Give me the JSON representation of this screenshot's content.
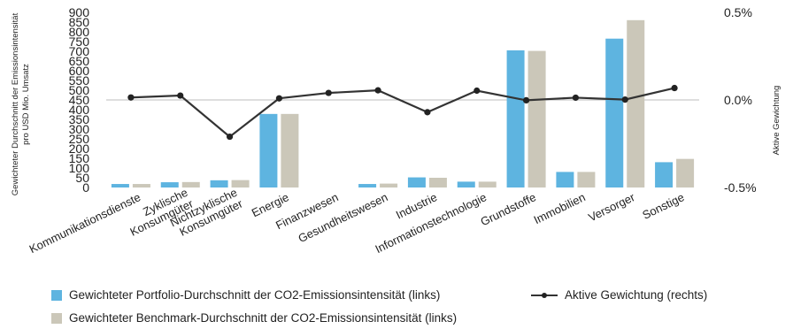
{
  "chart_data": {
    "type": "bar",
    "categories": [
      "Kommunikationsdienste",
      "Zyklische Konsumgüter",
      "Nichtzyklische Konsumgüter",
      "Energie",
      "Finanzwesen",
      "Gesundheitswesen",
      "Industrie",
      "Informationstechnologie",
      "Grundstoffe",
      "Immobilien",
      "Versorger",
      "Sonstige"
    ],
    "category_lines": [
      [
        "Kommunikationsdienste"
      ],
      [
        "Zyklische",
        "Konsumgüter"
      ],
      [
        "Nichtzyklische",
        "Konsumgüter"
      ],
      [
        "Energie"
      ],
      [
        "Finanzwesen"
      ],
      [
        "Gesundheitswesen"
      ],
      [
        "Industrie"
      ],
      [
        "Informationstechnologie"
      ],
      [
        "Grundstoffe"
      ],
      [
        "Immobilien"
      ],
      [
        "Versorger"
      ],
      [
        "Sonstige"
      ]
    ],
    "series": [
      {
        "name": "Gewichteter Portfolio-Durchschnitt der CO2-Emissionsintensität (links)",
        "axis": "left",
        "kind": "bar",
        "color": "#5eb4e0",
        "values": [
          18,
          27,
          37,
          378,
          0,
          18,
          52,
          30,
          705,
          80,
          765,
          130
        ]
      },
      {
        "name": "Gewichteter Benchmark-Durchschnitt der CO2-Emissionsintensität (links)",
        "axis": "left",
        "kind": "bar",
        "color": "#cbc7b9",
        "values": [
          18,
          28,
          38,
          378,
          0,
          20,
          50,
          30,
          702,
          80,
          860,
          147
        ]
      },
      {
        "name": "Aktive Gewichtung (rechts)",
        "axis": "right",
        "kind": "line",
        "color": "#333333",
        "values": [
          0.014,
          0.025,
          -0.21,
          0.009,
          0.04,
          0.055,
          -0.07,
          0.053,
          -0.002,
          0.013,
          0.002,
          0.068
        ]
      }
    ],
    "ylim_left": [
      0,
      900
    ],
    "left_ticks": [
      0,
      50,
      100,
      150,
      200,
      250,
      300,
      350,
      400,
      450,
      500,
      550,
      600,
      650,
      700,
      750,
      800,
      850,
      900
    ],
    "left_tick_labels": [
      "0",
      "50",
      "100",
      "150",
      "200",
      "250",
      "300",
      "350",
      "400",
      "450",
      "500",
      "550",
      "600",
      "650",
      "700",
      "750",
      "800",
      "850",
      "900"
    ],
    "ylim_right": [
      -0.5,
      0.5
    ],
    "right_ticks": [
      -0.5,
      0,
      0.5
    ],
    "right_tick_labels": [
      "-0.5%",
      "0.0%",
      "0.5%"
    ],
    "ylabel_left_lines": [
      "Gewichteter Durchschnitt der Emissionsintensität",
      "pro USD Mio. Umsatz"
    ],
    "ylabel_right": "Aktive Gewichtung",
    "legend_position": "bottom"
  },
  "legend": {
    "portfolio": "Gewichteter Portfolio-Durchschnitt der CO2-Emissionsintensität (links)",
    "benchmark": "Gewichteter Benchmark-Durchschnitt der CO2-Emissionsintensität (links)",
    "active": "Aktive Gewichtung (rechts)"
  }
}
